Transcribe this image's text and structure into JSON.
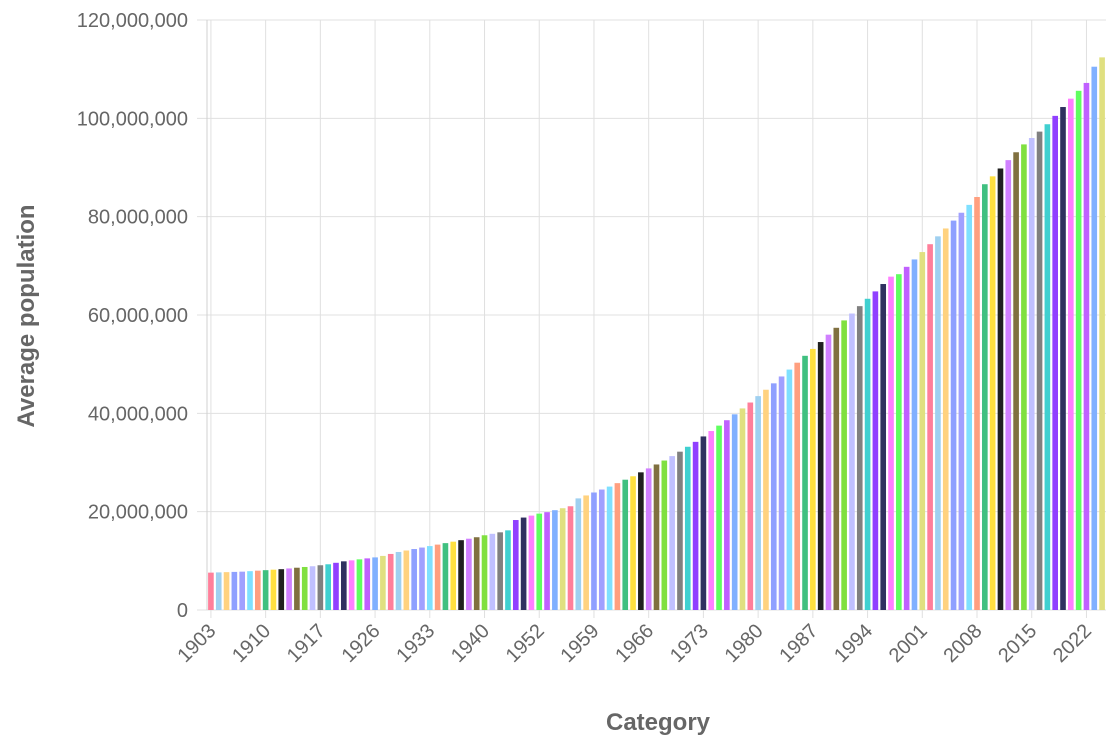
{
  "chart_data": {
    "type": "bar",
    "x_label": "Category",
    "y_label": "Average population",
    "categories": [
      "1903",
      null,
      null,
      null,
      null,
      null,
      null,
      "1910",
      null,
      null,
      null,
      null,
      null,
      null,
      "1917",
      null,
      null,
      null,
      null,
      null,
      null,
      "1926",
      null,
      null,
      null,
      null,
      null,
      null,
      "1933",
      null,
      null,
      null,
      null,
      null,
      null,
      "1940",
      null,
      null,
      null,
      null,
      null,
      null,
      "1952",
      null,
      null,
      null,
      null,
      null,
      null,
      "1959",
      null,
      null,
      null,
      null,
      null,
      null,
      "1966",
      null,
      null,
      null,
      null,
      null,
      null,
      "1973",
      null,
      null,
      null,
      null,
      null,
      null,
      "1980",
      null,
      null,
      null,
      null,
      null,
      null,
      "1987",
      null,
      null,
      null,
      null,
      null,
      null,
      "1994",
      null,
      null,
      null,
      null,
      null,
      null,
      "2001",
      null,
      null,
      null,
      null,
      null,
      null,
      "2008",
      null,
      null,
      null,
      null,
      null,
      null,
      "2015",
      null,
      null,
      null,
      null,
      null,
      null,
      "2022",
      null,
      null
    ],
    "values": [
      7600000,
      7650000,
      7700000,
      7750000,
      7800000,
      7900000,
      8000000,
      8100000,
      8200000,
      8300000,
      8450000,
      8600000,
      8750000,
      8900000,
      9100000,
      9300000,
      9600000,
      9900000,
      10100000,
      10300000,
      10500000,
      10700000,
      11000000,
      11400000,
      11800000,
      12100000,
      12400000,
      12700000,
      13000000,
      13300000,
      13600000,
      13900000,
      14200000,
      14500000,
      14800000,
      15200000,
      15500000,
      15800000,
      16200000,
      18300000,
      18800000,
      19200000,
      19600000,
      19900000,
      20300000,
      20700000,
      21100000,
      22700000,
      23300000,
      23900000,
      24500000,
      25100000,
      25800000,
      26500000,
      27200000,
      28000000,
      28800000,
      29600000,
      30400000,
      31300000,
      32200000,
      33200000,
      34200000,
      35300000,
      36400000,
      37500000,
      38600000,
      39800000,
      41000000,
      42200000,
      43500000,
      44800000,
      46100000,
      47500000,
      48900000,
      50300000,
      51700000,
      53100000,
      54500000,
      56000000,
      57400000,
      58900000,
      60300000,
      61800000,
      63300000,
      64800000,
      66300000,
      67800000,
      68300000,
      69800000,
      71300000,
      72800000,
      74400000,
      76000000,
      77600000,
      79200000,
      80800000,
      82400000,
      84000000,
      86600000,
      88200000,
      89800000,
      91500000,
      93100000,
      94700000,
      96000000,
      97300000,
      98800000,
      100500000,
      102300000,
      104000000,
      105600000,
      107200000,
      110500000,
      112400000
    ],
    "colors": [
      "#ff7f9a",
      "#9fd0f0",
      "#ffd27f",
      "#8fa0ff",
      "#a0a0ff",
      "#7fe0ff",
      "#ff9f7f",
      "#40c080",
      "#ffe040",
      "#202020",
      "#d080ff",
      "#807040",
      "#80e040",
      "#c0c0ff",
      "#808080",
      "#40d0d0",
      "#9040ff",
      "#303060",
      "#ff80ff",
      "#60ff60",
      "#c060ff",
      "#80b0ff",
      "#e0e080"
    ],
    "ylim": [
      0,
      120000000
    ],
    "yticks": [
      0,
      {
        "value": 20000000,
        "label": "20,000,000"
      },
      {
        "value": 40000000,
        "label": "40,000,000"
      },
      {
        "value": 60000000,
        "label": "60,000,000"
      },
      {
        "value": 80000000,
        "label": "80,000,000"
      },
      {
        "value": 100000000,
        "label": "100,000,000"
      },
      {
        "value": 120000000,
        "label": "120,000,000"
      }
    ],
    "grid": true
  }
}
